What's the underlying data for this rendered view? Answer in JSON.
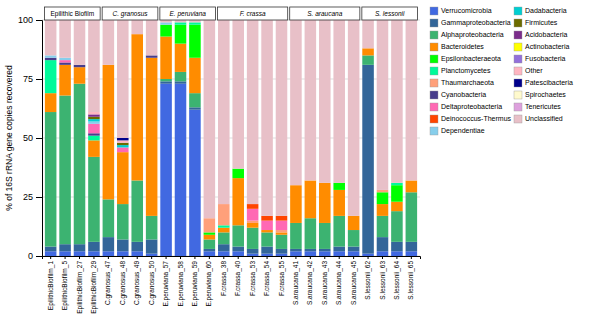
{
  "chart_data": {
    "type": "bar",
    "stacked": true,
    "y_label": "% of 16S rRNA gene copies recovered",
    "categories": [
      "EpilithicBiofilm_1",
      "EpilithicBiofilm_5",
      "EpilithicBiofilm_27",
      "EpilithicBiofilm_29",
      "C.granosus_47",
      "C.granosus_48",
      "C.granosus_49",
      "C.granosus_50",
      "E.peruviana_57",
      "E.peruviana_58",
      "E.peruviana_59",
      "E.peruviana_60",
      "F.crassa_38",
      "F.crassa_40",
      "F.crassa_53",
      "F.crassa_54",
      "F.crassa_55",
      "S.araucana_41",
      "S.araucana_42",
      "S.araucana_43",
      "S.araucana_44",
      "S.araucana_45",
      "S.lessonii_62",
      "S.lessonii_63",
      "S.lessonii_64",
      "S.lessonii_65"
    ],
    "annotations": [
      "Epilithic Biofilm",
      "C. granosus",
      "E. peruviana",
      "F. crassa",
      "S. araucana",
      "S. lessonii"
    ],
    "series": [
      {
        "name": "Verrucomicrobia",
        "color": "#4169E1",
        "values": [
          2,
          2,
          2,
          2,
          2,
          2,
          2,
          1,
          73,
          73,
          62,
          2,
          2,
          2,
          1,
          1,
          1,
          2,
          2,
          2,
          2,
          2,
          1,
          2,
          2,
          2
        ]
      },
      {
        "name": "Gammaproteobacteria",
        "color": "#336699",
        "values": [
          2,
          3,
          3,
          4,
          6,
          5,
          4,
          6,
          1,
          1,
          1,
          1,
          3,
          2,
          2,
          3,
          2,
          1,
          1,
          1,
          2,
          2,
          80,
          6,
          4,
          4
        ]
      },
      {
        "name": "Alphaproteobacteria",
        "color": "#3CB371",
        "values": [
          57,
          63,
          68,
          36,
          16,
          15,
          26,
          10,
          1,
          4,
          6,
          4,
          5,
          9,
          9,
          6,
          6,
          11,
          13,
          11,
          13,
          7,
          4,
          9,
          13,
          21
        ]
      },
      {
        "name": "Bacteroidetes",
        "color": "#FF8C00",
        "values": [
          8,
          13,
          7,
          7,
          57,
          22,
          62,
          67,
          18,
          12,
          15,
          2,
          2,
          20,
          2,
          1,
          1,
          16,
          16,
          17,
          11,
          6,
          3,
          5,
          4,
          5
        ]
      },
      {
        "name": "Epsilonbacteraeota",
        "color": "#00FF00",
        "values": [
          0,
          0,
          0,
          0,
          0,
          0,
          0,
          0,
          5,
          8,
          14,
          1,
          0,
          4,
          0,
          0,
          0,
          0,
          0,
          0,
          3,
          0,
          0,
          5,
          7,
          0
        ]
      },
      {
        "name": "Planctomycetes",
        "color": "#00FA9A",
        "values": [
          14,
          0,
          0,
          2,
          0,
          0,
          0,
          0,
          0,
          1,
          1,
          0,
          1,
          0,
          0,
          0,
          0,
          0,
          0,
          0,
          0,
          0,
          0,
          0,
          1,
          0
        ]
      },
      {
        "name": "Thaumarchaeota",
        "color": "#FFA07A",
        "values": [
          0,
          0,
          0,
          0,
          0,
          0,
          0,
          0,
          0,
          0,
          0,
          6,
          9,
          0,
          1,
          0,
          1,
          0,
          0,
          0,
          0,
          0,
          0,
          1,
          0,
          0
        ]
      },
      {
        "name": "Cyanobacteria",
        "color": "#483D8B",
        "values": [
          1,
          1,
          1,
          1,
          0,
          0,
          0,
          1,
          0,
          0,
          0,
          0,
          0,
          0,
          0,
          0,
          0,
          0,
          0,
          0,
          0,
          0,
          0,
          0,
          0,
          0
        ]
      },
      {
        "name": "Deltaproteobacteria",
        "color": "#FF69B4",
        "values": [
          0,
          1,
          0,
          4,
          0,
          2,
          0,
          0,
          0,
          0,
          0,
          0,
          0,
          0,
          5,
          4,
          4,
          0,
          0,
          0,
          0,
          0,
          0,
          0,
          0,
          0
        ]
      },
      {
        "name": "Deinococcus-Thermus",
        "color": "#FF4500",
        "values": [
          0,
          0,
          0,
          0,
          0,
          0,
          0,
          0,
          0,
          0,
          0,
          0,
          0,
          0,
          2,
          2,
          2,
          0,
          0,
          0,
          0,
          0,
          0,
          0,
          0,
          0
        ]
      },
      {
        "name": "Dependentiae",
        "color": "#87CEEB",
        "values": [
          1,
          1,
          0,
          1,
          0,
          0,
          0,
          0,
          1,
          0,
          0,
          0,
          0,
          0,
          0,
          0,
          0,
          0,
          0,
          0,
          0,
          0,
          0,
          0,
          0,
          0
        ]
      },
      {
        "name": "Dadabacteria",
        "color": "#00CED1",
        "values": [
          0,
          0,
          0,
          1,
          0,
          1,
          0,
          0,
          0,
          0,
          0,
          0,
          0,
          0,
          0,
          0,
          0,
          0,
          0,
          0,
          0,
          0,
          0,
          0,
          0,
          0
        ]
      },
      {
        "name": "Firmicutes",
        "color": "#6B6B00",
        "values": [
          0,
          0,
          0,
          1,
          0,
          1,
          0,
          0,
          0,
          0,
          0,
          0,
          0,
          0,
          0,
          0,
          0,
          0,
          0,
          0,
          0,
          0,
          0,
          0,
          0,
          0
        ]
      },
      {
        "name": "Acidobacteria",
        "color": "#7B2D8B",
        "values": [
          0,
          0,
          0,
          1,
          0,
          0,
          0,
          0,
          0,
          0,
          0,
          0,
          0,
          0,
          0,
          0,
          0,
          0,
          0,
          0,
          0,
          0,
          0,
          0,
          0,
          0
        ]
      },
      {
        "name": "Actinobacteria",
        "color": "#FFFF00",
        "values": [
          0,
          0,
          0,
          0,
          0,
          0,
          0,
          0,
          0,
          0,
          0,
          0,
          0,
          0,
          0,
          0,
          0,
          0,
          0,
          0,
          0,
          0,
          0,
          0,
          0,
          0
        ]
      },
      {
        "name": "Fusobacteria",
        "color": "#9370DB",
        "values": [
          0,
          0,
          0,
          0,
          0,
          0,
          0,
          0,
          0,
          0,
          0,
          0,
          0,
          0,
          0,
          0,
          0,
          0,
          0,
          0,
          0,
          0,
          0,
          0,
          0,
          0
        ]
      },
      {
        "name": "Other",
        "color": "#FFB6C1",
        "values": [
          0,
          0,
          0,
          1,
          0,
          1,
          0,
          0,
          0,
          0,
          0,
          0,
          0,
          0,
          0,
          0,
          0,
          0,
          0,
          0,
          0,
          0,
          0,
          0,
          0,
          0
        ]
      },
      {
        "name": "Patescibacteria",
        "color": "#00008B",
        "values": [
          0,
          0,
          0,
          0,
          0,
          1,
          0,
          0,
          0,
          0,
          0,
          0,
          0,
          0,
          0,
          0,
          0,
          0,
          0,
          0,
          0,
          0,
          0,
          0,
          0,
          0
        ]
      },
      {
        "name": "Spirochaetes",
        "color": "#FFFACD",
        "values": [
          0,
          0,
          0,
          0,
          0,
          0,
          0,
          0,
          0,
          0,
          0,
          0,
          0,
          0,
          0,
          0,
          0,
          0,
          0,
          0,
          0,
          0,
          0,
          0,
          0,
          0
        ]
      },
      {
        "name": "Tenericutes",
        "color": "#DDA0DD",
        "values": [
          0,
          0,
          0,
          0,
          0,
          0,
          0,
          0,
          0,
          0,
          0,
          0,
          0,
          0,
          0,
          0,
          0,
          0,
          0,
          0,
          0,
          0,
          0,
          0,
          0,
          0
        ]
      },
      {
        "name": "Unclassified",
        "color": "#E8C0C8",
        "values": [
          15,
          16,
          19,
          39,
          19,
          50,
          6,
          15,
          1,
          1,
          1,
          84,
          78,
          63,
          78,
          83,
          83,
          70,
          68,
          69,
          69,
          83,
          12,
          72,
          69,
          68
        ]
      }
    ],
    "ylim": [
      0,
      100
    ],
    "yticks": [
      0,
      25,
      50,
      75,
      100
    ],
    "grid": true,
    "legend": "right"
  }
}
